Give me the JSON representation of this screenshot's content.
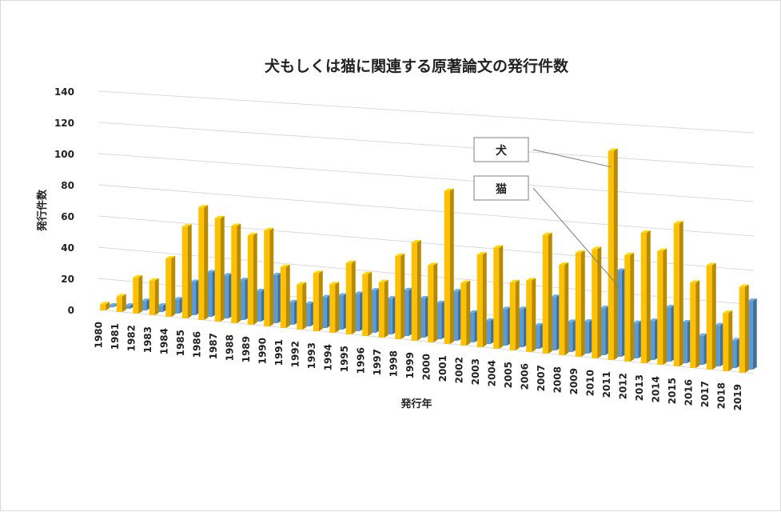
{
  "chart_data": {
    "type": "bar",
    "title": "犬もしくは猫に関連する原著論文の発行件数",
    "xlabel": "発行年",
    "ylabel": "発行件数",
    "ylim": [
      0,
      140
    ],
    "yticks": [
      0,
      20,
      40,
      60,
      80,
      100,
      120,
      140
    ],
    "grid": true,
    "categories": [
      "1980",
      "1981",
      "1982",
      "1983",
      "1984",
      "1985",
      "1986",
      "1987",
      "1988",
      "1989",
      "1990",
      "1991",
      "1992",
      "1993",
      "1994",
      "1995",
      "1996",
      "1997",
      "1998",
      "1999",
      "2000",
      "2001",
      "2002",
      "2003",
      "2004",
      "2005",
      "2006",
      "2007",
      "2008",
      "2009",
      "2010",
      "2011",
      "2012",
      "2013",
      "2014",
      "2015",
      "2016",
      "2017",
      "2018",
      "2019"
    ],
    "series": [
      {
        "name": "犬",
        "color": "#FFC000",
        "values": [
          4,
          10,
          23,
          22,
          37,
          58,
          71,
          65,
          61,
          56,
          60,
          38,
          28,
          36,
          30,
          44,
          38,
          34,
          51,
          60,
          47,
          93,
          38,
          56,
          61,
          41,
          43,
          71,
          54,
          62,
          65,
          124,
          63,
          77,
          67,
          84,
          50,
          61,
          34,
          50
        ]
      },
      {
        "name": "猫",
        "color": "#5B9BD5",
        "values": [
          1,
          2,
          6,
          4,
          9,
          21,
          28,
          27,
          25,
          19,
          30,
          14,
          14,
          19,
          21,
          23,
          26,
          22,
          28,
          24,
          22,
          30,
          18,
          14,
          22,
          23,
          14,
          32,
          18,
          19,
          28,
          51,
          21,
          23,
          32,
          24,
          17,
          24,
          16,
          40
        ]
      }
    ],
    "legend": "callouts"
  }
}
